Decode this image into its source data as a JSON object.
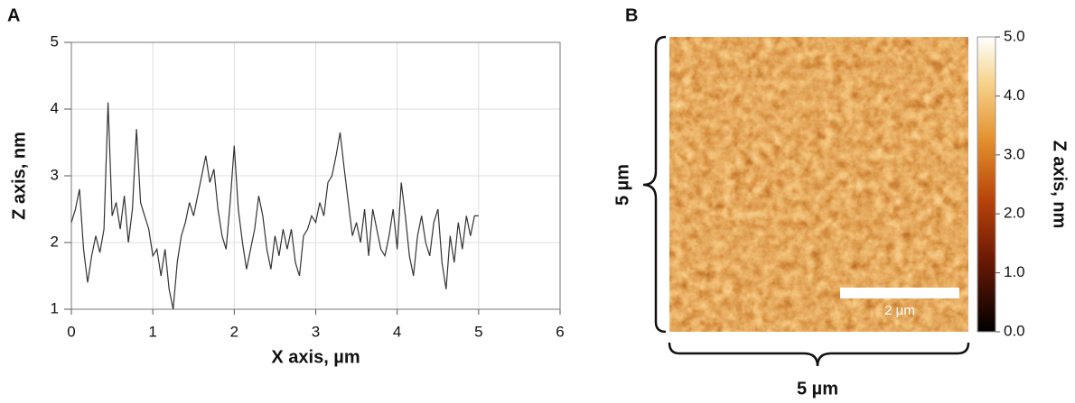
{
  "chart_data": [
    {
      "type": "line",
      "panel": "A",
      "xlabel": "X axis, µm",
      "ylabel": "Z axis, nm",
      "xlim": [
        0,
        6
      ],
      "xticks": [
        0,
        1,
        2,
        3,
        4,
        5,
        6
      ],
      "ylim": [
        1,
        5
      ],
      "yticks": [
        1,
        2,
        3,
        4,
        5
      ],
      "grid": true,
      "x": [
        0,
        0.05,
        0.1,
        0.15,
        0.2,
        0.25,
        0.3,
        0.35,
        0.4,
        0.45,
        0.5,
        0.55,
        0.6,
        0.65,
        0.7,
        0.75,
        0.8,
        0.85,
        0.9,
        0.95,
        1,
        1.05,
        1.1,
        1.15,
        1.2,
        1.25,
        1.3,
        1.35,
        1.4,
        1.45,
        1.5,
        1.55,
        1.6,
        1.65,
        1.7,
        1.75,
        1.8,
        1.85,
        1.9,
        1.95,
        2,
        2.05,
        2.1,
        2.15,
        2.2,
        2.25,
        2.3,
        2.35,
        2.4,
        2.45,
        2.5,
        2.55,
        2.6,
        2.65,
        2.7,
        2.75,
        2.8,
        2.85,
        2.9,
        2.95,
        3,
        3.05,
        3.1,
        3.15,
        3.2,
        3.25,
        3.3,
        3.35,
        3.4,
        3.45,
        3.5,
        3.55,
        3.6,
        3.65,
        3.7,
        3.75,
        3.8,
        3.85,
        3.9,
        3.95,
        4,
        4.05,
        4.1,
        4.15,
        4.2,
        4.25,
        4.3,
        4.35,
        4.4,
        4.45,
        4.5,
        4.55,
        4.6,
        4.65,
        4.7,
        4.75,
        4.8,
        4.85,
        4.9,
        4.95,
        5
      ],
      "series": [
        {
          "color": "#333333",
          "values": [
            2.3,
            2.5,
            2.8,
            1.9,
            1.4,
            1.8,
            2.1,
            1.85,
            2.2,
            4.1,
            2.4,
            2.6,
            2.2,
            2.7,
            2.0,
            2.5,
            3.7,
            2.6,
            2.4,
            2.2,
            1.8,
            1.9,
            1.5,
            1.9,
            1.3,
            1.0,
            1.7,
            2.1,
            2.3,
            2.6,
            2.4,
            2.7,
            3.0,
            3.3,
            2.9,
            3.1,
            2.5,
            2.1,
            1.9,
            2.6,
            3.45,
            2.5,
            2.0,
            1.6,
            1.9,
            2.2,
            2.7,
            2.4,
            1.9,
            1.6,
            2.1,
            1.8,
            2.2,
            1.9,
            2.2,
            1.7,
            1.5,
            2.1,
            2.2,
            2.4,
            2.3,
            2.6,
            2.4,
            2.9,
            3.0,
            3.3,
            3.65,
            3.1,
            2.6,
            2.1,
            2.3,
            2.0,
            2.5,
            1.8,
            2.5,
            2.2,
            1.9,
            1.8,
            2.1,
            2.5,
            1.9,
            2.9,
            2.4,
            1.8,
            1.5,
            2.1,
            2.4,
            2.0,
            1.8,
            2.3,
            2.5,
            1.7,
            1.3,
            2.1,
            1.7,
            2.3,
            1.9,
            2.4,
            2.1,
            2.4,
            2.4
          ]
        }
      ]
    },
    {
      "type": "image",
      "panel": "B",
      "height_label": "5 µm",
      "width_label": "5 µm",
      "scale_bar_label": "2 µm",
      "colorbar_label": "Z axis, nm",
      "clim": [
        0,
        5
      ],
      "cticks": [
        {
          "value": 0,
          "label": "0.0"
        },
        {
          "value": 1,
          "label": "1.0"
        },
        {
          "value": 2,
          "label": "2.0"
        },
        {
          "value": 3,
          "label": "3.0"
        },
        {
          "value": 4,
          "label": "4.0"
        },
        {
          "value": 5,
          "label": "5.0"
        }
      ]
    }
  ]
}
